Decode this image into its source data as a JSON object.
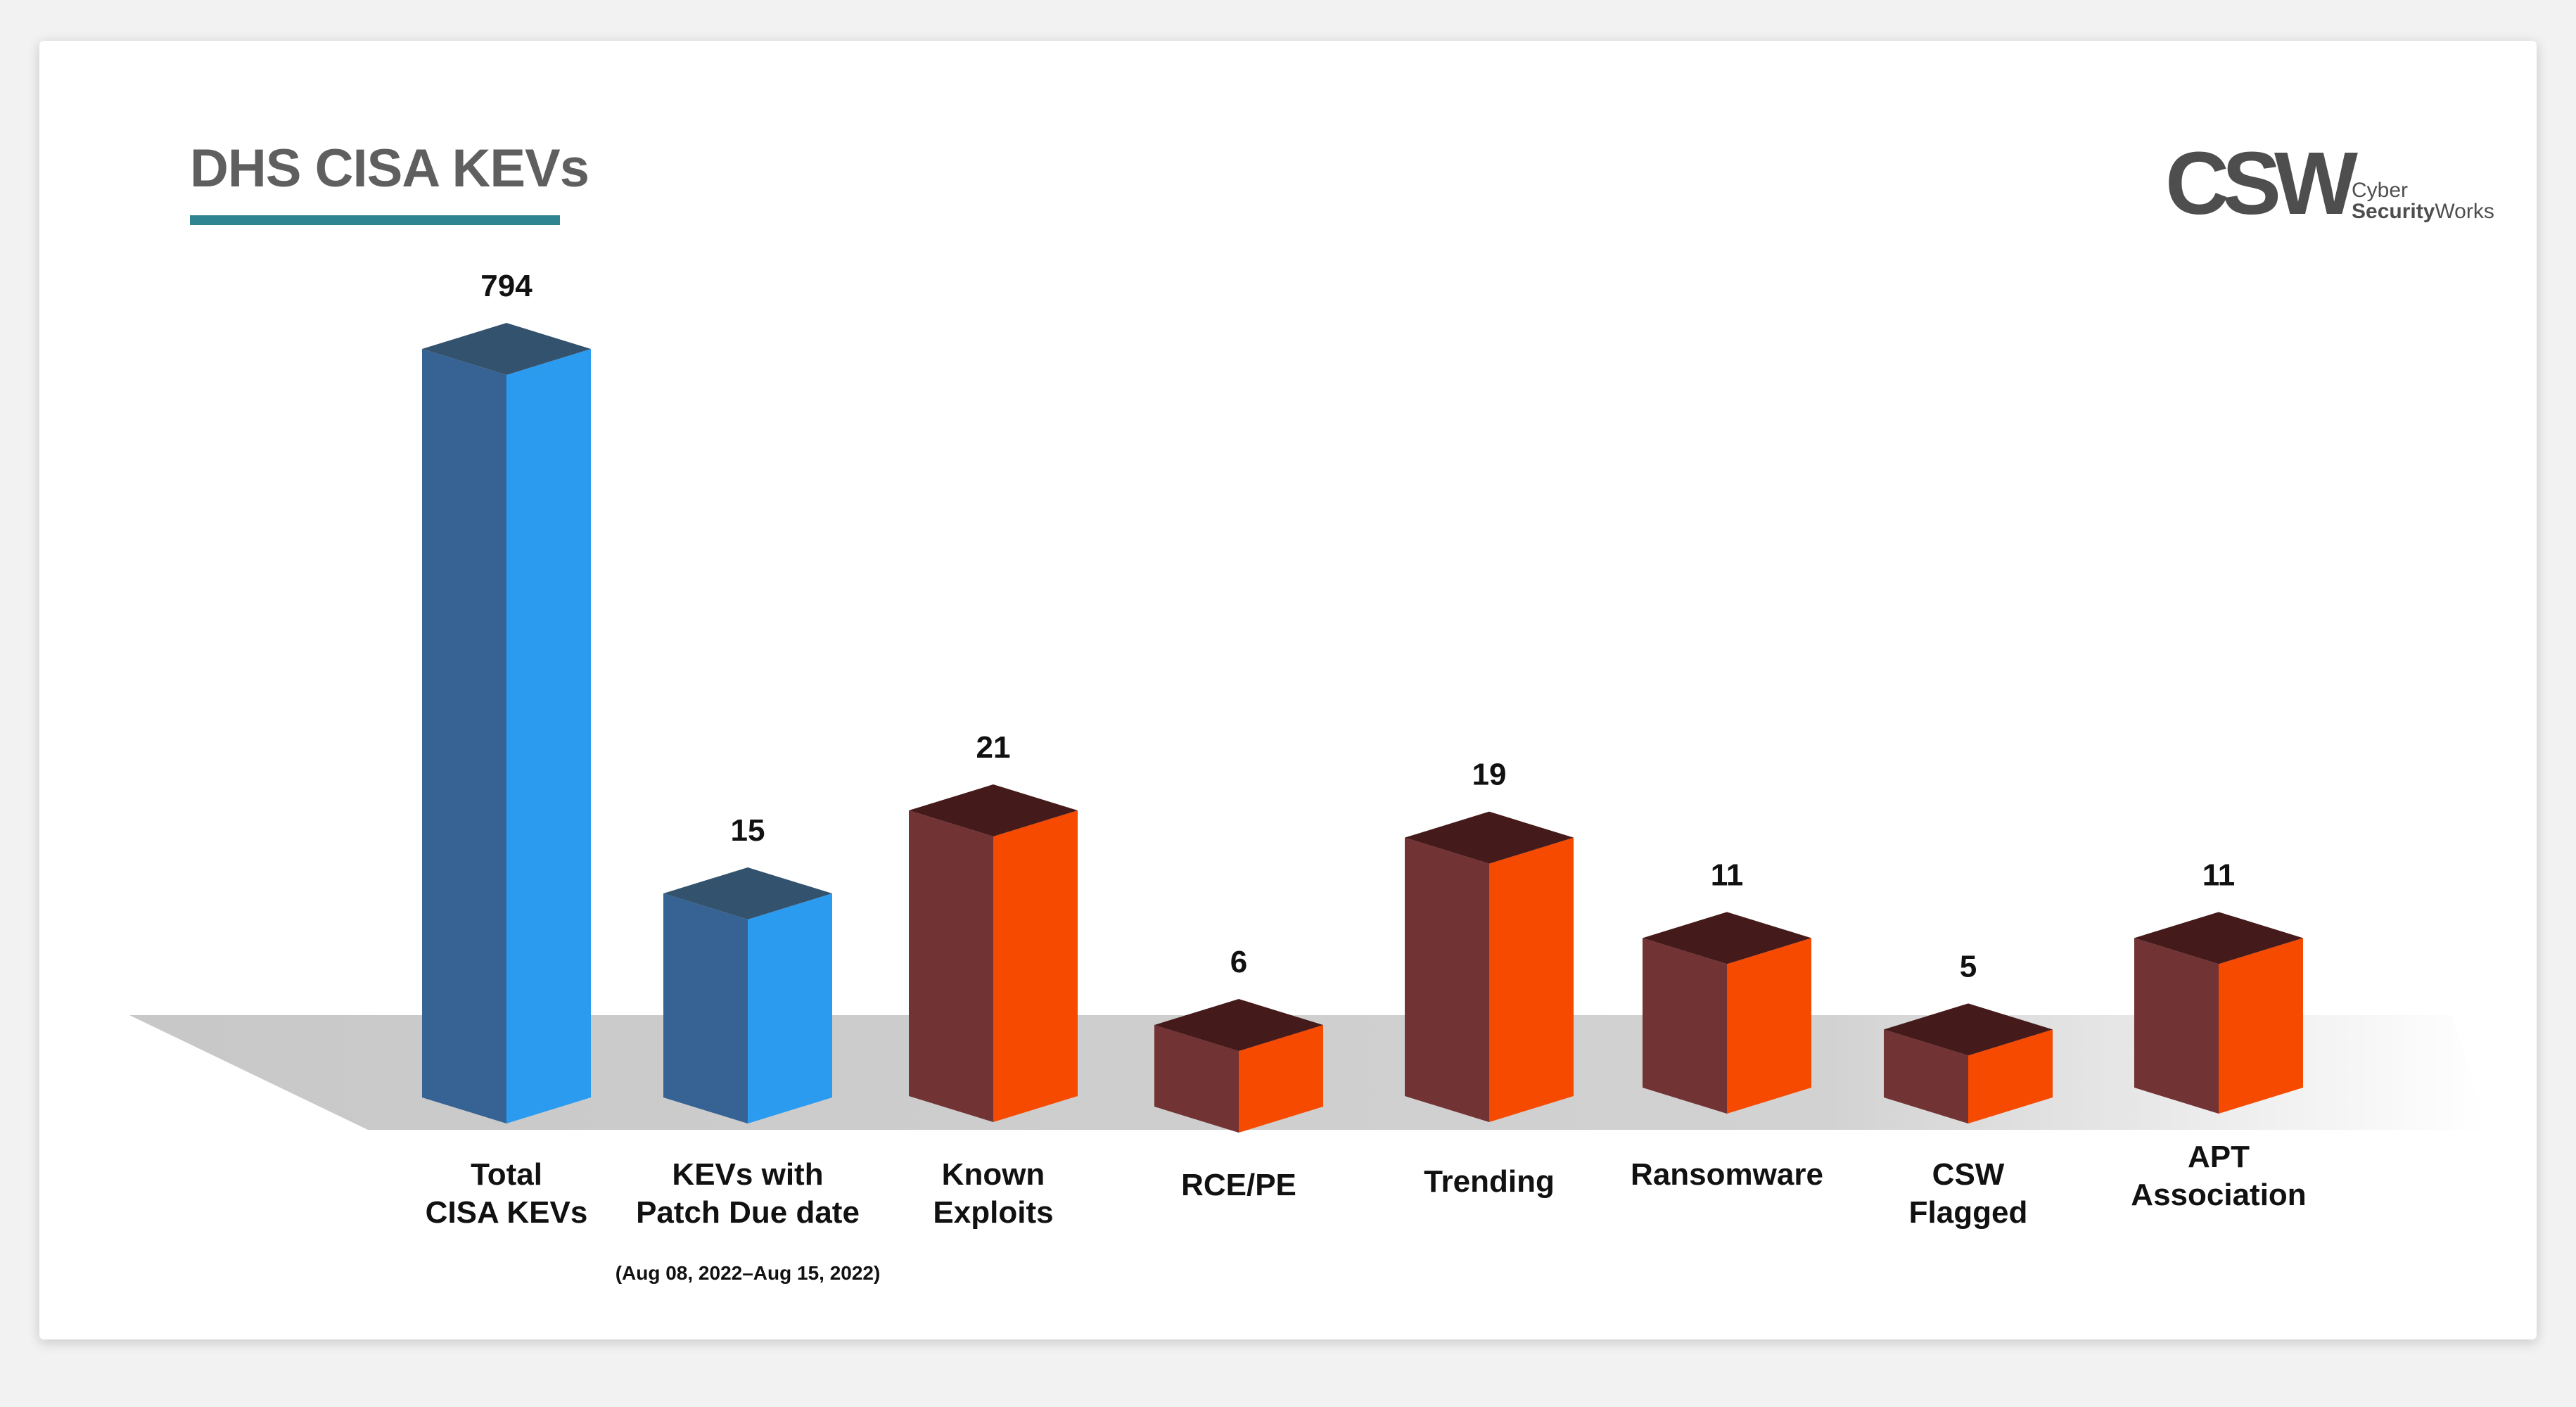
{
  "chart_data": {
    "type": "bar",
    "title": "DHS CISA KEVs",
    "categories": [
      "Total\nCISA KEVs",
      "KEVs with\nPatch Due date",
      "Known\nExploits",
      "RCE/PE",
      "Trending",
      "Ransomware",
      "CSW\nFlagged",
      "APT\nAssociation"
    ],
    "values": [
      794,
      15,
      21,
      6,
      19,
      11,
      5,
      11
    ],
    "value_labels": [
      "794",
      "15",
      "21",
      "6",
      "19",
      "11",
      "5",
      "11"
    ],
    "category_note": "(Aug 08, 2022–Aug 15, 2022)",
    "style": "3d",
    "grid": false,
    "legend": "none",
    "colors": {
      "blue_front": "#2b9bf0",
      "blue_side": "#366394",
      "blue_top": "#33526e",
      "orange_front": "#f54a00",
      "orange_side": "#723334",
      "orange_top": "#451a1b",
      "accent": "#2f8491"
    },
    "bar_color_group": [
      "blue",
      "blue",
      "orange",
      "orange",
      "orange",
      "orange",
      "orange",
      "orange"
    ]
  },
  "logo": {
    "mark": "CSW",
    "line1": "Cyber",
    "line2_bold": "Security",
    "line2": "Works"
  }
}
